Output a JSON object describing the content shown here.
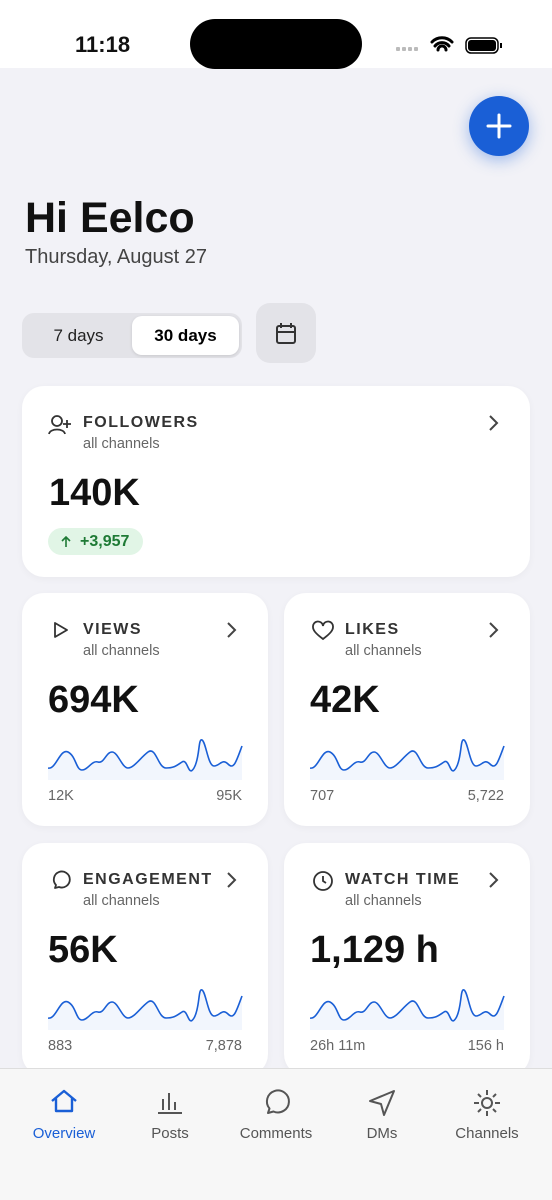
{
  "status": {
    "time": "11:18"
  },
  "greeting": {
    "title": "Hi Eelco",
    "date": "Thursday, August 27"
  },
  "range": {
    "options": [
      "7 days",
      "30 days"
    ],
    "selected": 1
  },
  "followers": {
    "label": "FOLLOWERS",
    "subtitle": "all channels",
    "value": "140K",
    "change": "+3,957"
  },
  "metrics": [
    {
      "icon": "play",
      "label": "VIEWS",
      "subtitle": "all channels",
      "value": "694K",
      "min": "12K",
      "max": "95K"
    },
    {
      "icon": "heart",
      "label": "LIKES",
      "subtitle": "all channels",
      "value": "42K",
      "min": "707",
      "max": "5,722"
    },
    {
      "icon": "bubble",
      "label": "ENGAGEMENT",
      "subtitle": "all channels",
      "value": "56K",
      "min": "883",
      "max": "7,878"
    },
    {
      "icon": "clock",
      "label": "WATCH TIME",
      "subtitle": "all channels",
      "value": "1,129 h",
      "min": "26h 11m",
      "max": "156 h"
    }
  ],
  "nav": {
    "items": [
      "Overview",
      "Posts",
      "Comments",
      "DMs",
      "Channels"
    ],
    "active": 0
  }
}
